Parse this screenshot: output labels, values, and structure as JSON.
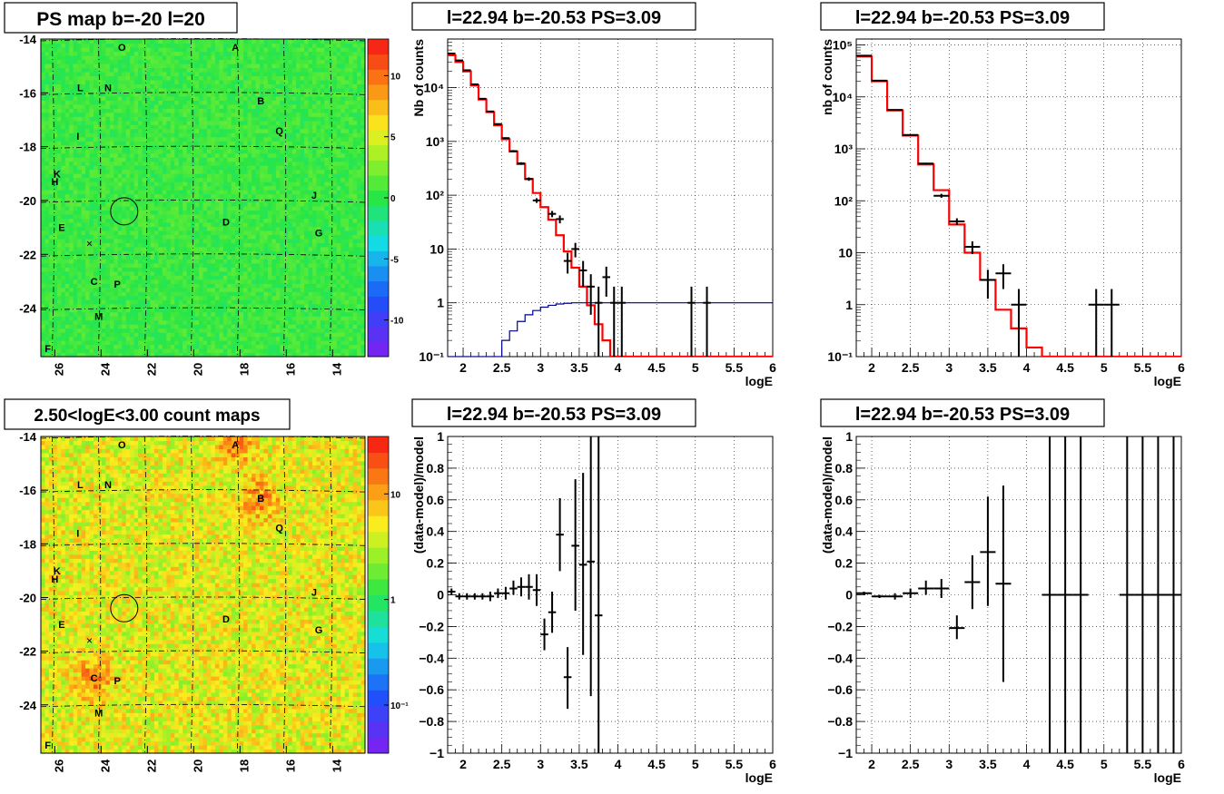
{
  "panel_titles": {
    "map_ps": "PS map b=-20 l=20",
    "map_counts": "2.50<logE<3.00 count maps",
    "spec_a": "l=22.94 b=-20.53 PS=3.09",
    "spec_b": "l=22.94 b=-20.53 PS=3.09",
    "res_a": "l=22.94 b=-20.53 PS=3.09",
    "res_b": "l=22.94 b=-20.53 PS=3.09"
  },
  "colors": {
    "frame": "#000000",
    "model_line": "#ff0000",
    "exposure_line": "#00008b",
    "map_base_ps": "#27e63b",
    "map_base_counts": "#f8b010"
  },
  "map_common": {
    "x_ticks": [
      "26",
      "24",
      "22",
      "20",
      "18",
      "16",
      "14"
    ],
    "y_ticks": [
      "-14",
      "-16",
      "-18",
      "-20",
      "-22",
      "-24"
    ],
    "source_labels": [
      "O",
      "A",
      "N",
      "L",
      "B",
      "Q",
      "I",
      "K",
      "H",
      "J",
      "E",
      "D",
      "G",
      "C",
      "P",
      "M",
      "F"
    ],
    "circle_marker": "candidate position circle",
    "cross_marker": "×"
  },
  "chart_data": [
    {
      "type": "heatmap",
      "panel": "map_ps",
      "title": "PS map b=-20 l=20",
      "x_range": [
        26.6,
        12.6
      ],
      "y_range": [
        -25.8,
        -14
      ],
      "colorbar_ticks": [
        "10",
        "5",
        "0",
        "-5",
        "-10"
      ],
      "colorbar_range": [
        -13,
        13
      ],
      "map_scale": "linear",
      "base_value": 0.5
    },
    {
      "type": "heatmap",
      "panel": "map_counts",
      "title": "2.50<logE<3.00 count maps",
      "x_range": [
        26.6,
        12.6
      ],
      "y_range": [
        -25.8,
        -14
      ],
      "colorbar_ticks": [
        "10",
        "1",
        "10⁻¹"
      ],
      "colorbar_range": [
        0.035,
        35
      ],
      "map_scale": "log",
      "base_value": 4.5
    },
    {
      "type": "line",
      "panel": "spec_a",
      "title": "l=22.94 b=-20.53 PS=3.09",
      "xlabel": "logE",
      "ylabel": "Nb of counts",
      "xlim": [
        1.8,
        6
      ],
      "ylim": [
        0.1,
        80000
      ],
      "y_scale": "log",
      "x_ticks": [
        "2",
        "2.5",
        "3",
        "3.5",
        "4",
        "4.5",
        "5",
        "5.5",
        "6"
      ],
      "y_ticks": [
        "10⁻¹",
        "1",
        "10",
        "10²",
        "10³",
        "10⁴"
      ],
      "grid": true,
      "series": [
        {
          "kind": "step",
          "color": "red",
          "bin_width": 0.1,
          "values": [
            40000,
            30000,
            20000,
            11000,
            6000,
            3500,
            2000,
            1100,
            650,
            380,
            200,
            110,
            60,
            35,
            18,
            9,
            4.5,
            2,
            0.9,
            0.4,
            0.2,
            0.1,
            0.1,
            0.1,
            0.1,
            0.1,
            0.1,
            0.1,
            0.1,
            0.1,
            0.1,
            0.1,
            0.1,
            0.1,
            0.1,
            0.1,
            0.1,
            0.1,
            0.1,
            0.1,
            0.1,
            0.1
          ]
        },
        {
          "kind": "step",
          "color": "blue",
          "bin_width": 0.1,
          "values": [
            0.1,
            0.1,
            0.1,
            0.1,
            0.1,
            0.1,
            0.1,
            0.2,
            0.3,
            0.45,
            0.6,
            0.72,
            0.83,
            0.9,
            0.95,
            0.98,
            1.0,
            1.0,
            1.0,
            1.0,
            1.0,
            1.0,
            1.0,
            1.0,
            1.0,
            1.0,
            1.0,
            1.0,
            1.0,
            1.0,
            1.0,
            1.0,
            1.0,
            1.0,
            1.0,
            1.0,
            1.0,
            1.0,
            1.0,
            1.0,
            1.0,
            1.0
          ]
        },
        {
          "kind": "errorbars",
          "color": "black",
          "xerr": 0.05,
          "points": [
            {
              "x": 1.85,
              "y": 43000,
              "lo": 42000,
              "hi": 44000
            },
            {
              "x": 1.95,
              "y": 32000,
              "lo": 31500,
              "hi": 32500
            },
            {
              "x": 2.05,
              "y": 21000,
              "lo": 20700,
              "hi": 21300
            },
            {
              "x": 2.15,
              "y": 11500,
              "lo": 11300,
              "hi": 11700
            },
            {
              "x": 2.25,
              "y": 6200,
              "lo": 6100,
              "hi": 6300
            },
            {
              "x": 2.35,
              "y": 3600,
              "lo": 3500,
              "hi": 3700
            },
            {
              "x": 2.45,
              "y": 2100,
              "lo": 2050,
              "hi": 2150
            },
            {
              "x": 2.55,
              "y": 1150,
              "lo": 1110,
              "hi": 1190
            },
            {
              "x": 2.65,
              "y": 660,
              "lo": 630,
              "hi": 690
            },
            {
              "x": 2.75,
              "y": 390,
              "lo": 370,
              "hi": 410
            },
            {
              "x": 2.85,
              "y": 200,
              "lo": 185,
              "hi": 215
            },
            {
              "x": 2.95,
              "y": 80,
              "lo": 72,
              "hi": 88
            },
            {
              "x": 3.15,
              "y": 45,
              "lo": 39,
              "hi": 51
            },
            {
              "x": 3.25,
              "y": 36,
              "lo": 30,
              "hi": 42
            },
            {
              "x": 3.35,
              "y": 6,
              "lo": 3.5,
              "hi": 8.5
            },
            {
              "x": 3.45,
              "y": 10,
              "lo": 7,
              "hi": 13
            },
            {
              "x": 3.55,
              "y": 4,
              "lo": 2,
              "hi": 6
            },
            {
              "x": 3.65,
              "y": 2,
              "lo": 0.6,
              "hi": 3.4
            },
            {
              "x": 3.75,
              "y": 1,
              "lo": 0.1,
              "hi": 2
            },
            {
              "x": 3.85,
              "y": 3,
              "lo": 1.3,
              "hi": 4.7
            },
            {
              "x": 3.95,
              "y": 1,
              "lo": 0.1,
              "hi": 2
            },
            {
              "x": 4.05,
              "y": 1,
              "lo": 0.1,
              "hi": 2
            },
            {
              "x": 4.95,
              "y": 1,
              "lo": 0.1,
              "hi": 2
            },
            {
              "x": 5.15,
              "y": 1,
              "lo": 0.1,
              "hi": 2
            }
          ]
        }
      ]
    },
    {
      "type": "line",
      "panel": "spec_b",
      "title": "l=22.94 b=-20.53 PS=3.09",
      "xlabel": "logE",
      "ylabel": "nb of counts",
      "xlim": [
        1.8,
        6
      ],
      "ylim": [
        0.1,
        130000
      ],
      "y_scale": "log",
      "x_ticks": [
        "2",
        "2.5",
        "3",
        "3.5",
        "4",
        "4.5",
        "5",
        "5.5",
        "6"
      ],
      "y_ticks": [
        "10⁻¹",
        "1",
        "10",
        "10²",
        "10³",
        "10⁴",
        "10⁵"
      ],
      "grid": true,
      "series": [
        {
          "kind": "step",
          "color": "red",
          "bin_width": 0.2,
          "values": [
            60000,
            20000,
            5500,
            1800,
            500,
            160,
            35,
            10,
            3,
            0.8,
            0.35,
            0.15,
            0.1,
            0.1,
            0.1,
            0.1,
            0.1,
            0.1,
            0.1,
            0.1,
            0.1
          ]
        },
        {
          "kind": "errorbars",
          "color": "black",
          "xerr": 0.1,
          "points": [
            {
              "x": 1.9,
              "y": 62000,
              "lo": 61000,
              "hi": 63000
            },
            {
              "x": 2.1,
              "y": 20500,
              "lo": 20200,
              "hi": 20800
            },
            {
              "x": 2.3,
              "y": 5600,
              "lo": 5500,
              "hi": 5700
            },
            {
              "x": 2.5,
              "y": 1850,
              "lo": 1800,
              "hi": 1900
            },
            {
              "x": 2.7,
              "y": 520,
              "lo": 500,
              "hi": 540
            },
            {
              "x": 2.9,
              "y": 125,
              "lo": 114,
              "hi": 136
            },
            {
              "x": 3.1,
              "y": 40,
              "lo": 34,
              "hi": 46
            },
            {
              "x": 3.3,
              "y": 13,
              "lo": 9.4,
              "hi": 16.6
            },
            {
              "x": 3.5,
              "y": 3,
              "lo": 1.3,
              "hi": 4.7
            },
            {
              "x": 3.7,
              "y": 4,
              "lo": 2,
              "hi": 6
            },
            {
              "x": 3.9,
              "y": 1,
              "lo": 0.1,
              "hi": 2
            },
            {
              "x": 4.9,
              "y": 1,
              "lo": 0.1,
              "hi": 2
            },
            {
              "x": 5.1,
              "y": 1,
              "lo": 0.1,
              "hi": 2
            }
          ]
        }
      ]
    },
    {
      "type": "scatter",
      "panel": "res_a",
      "title": "l=22.94 b=-20.53 PS=3.09",
      "xlabel": "logE",
      "ylabel": "(data-model)/model",
      "xlim": [
        1.8,
        6
      ],
      "ylim": [
        -1,
        1
      ],
      "x_ticks": [
        "2",
        "2.5",
        "3",
        "3.5",
        "4",
        "4.5",
        "5",
        "5.5",
        "6"
      ],
      "y_ticks": [
        "−1",
        "−0.8",
        "−0.6",
        "−0.4",
        "−0.2",
        "0",
        "0.2",
        "0.4",
        "0.6",
        "0.8",
        "1"
      ],
      "grid": true,
      "series": [
        {
          "kind": "errorbars",
          "color": "black",
          "xerr": 0.05,
          "points": [
            {
              "x": 1.85,
              "y": 0.02,
              "lo": 0.0,
              "hi": 0.04
            },
            {
              "x": 1.95,
              "y": -0.01,
              "lo": -0.03,
              "hi": 0.01
            },
            {
              "x": 2.05,
              "y": -0.01,
              "lo": -0.03,
              "hi": 0.01
            },
            {
              "x": 2.15,
              "y": -0.01,
              "lo": -0.03,
              "hi": 0.01
            },
            {
              "x": 2.25,
              "y": -0.01,
              "lo": -0.03,
              "hi": 0.01
            },
            {
              "x": 2.35,
              "y": -0.01,
              "lo": -0.04,
              "hi": 0.02
            },
            {
              "x": 2.45,
              "y": 0.01,
              "lo": -0.02,
              "hi": 0.04
            },
            {
              "x": 2.55,
              "y": 0.01,
              "lo": -0.03,
              "hi": 0.05
            },
            {
              "x": 2.65,
              "y": 0.04,
              "lo": 0.0,
              "hi": 0.09
            },
            {
              "x": 2.75,
              "y": 0.05,
              "lo": -0.01,
              "hi": 0.11
            },
            {
              "x": 2.85,
              "y": 0.05,
              "lo": -0.03,
              "hi": 0.13
            },
            {
              "x": 2.95,
              "y": 0.03,
              "lo": -0.07,
              "hi": 0.13
            },
            {
              "x": 3.05,
              "y": -0.25,
              "lo": -0.35,
              "hi": -0.15
            },
            {
              "x": 3.15,
              "y": -0.11,
              "lo": -0.24,
              "hi": 0.02
            },
            {
              "x": 3.25,
              "y": 0.38,
              "lo": 0.15,
              "hi": 0.61
            },
            {
              "x": 3.35,
              "y": -0.52,
              "lo": -0.72,
              "hi": -0.33
            },
            {
              "x": 3.45,
              "y": 0.31,
              "lo": -0.1,
              "hi": 0.73
            },
            {
              "x": 3.55,
              "y": 0.19,
              "lo": -0.38,
              "hi": 0.77
            },
            {
              "x": 3.65,
              "y": 0.21,
              "lo": -0.64,
              "hi": 1.0
            },
            {
              "x": 3.75,
              "y": -0.13,
              "lo": -1.0,
              "hi": 1.0
            }
          ]
        }
      ]
    },
    {
      "type": "scatter",
      "panel": "res_b",
      "title": "l=22.94 b=-20.53 PS=3.09",
      "xlabel": "logE",
      "ylabel": "(data-model)/model",
      "xlim": [
        1.8,
        6
      ],
      "ylim": [
        -1,
        1
      ],
      "x_ticks": [
        "2",
        "2.5",
        "3",
        "3.5",
        "4",
        "4.5",
        "5",
        "5.5",
        "6"
      ],
      "y_ticks": [
        "−1",
        "−0.8",
        "−0.6",
        "−0.4",
        "−0.2",
        "0",
        "0.2",
        "0.4",
        "0.6",
        "0.8",
        "1"
      ],
      "grid": true,
      "series": [
        {
          "kind": "errorbars",
          "color": "black",
          "xerr": 0.1,
          "points": [
            {
              "x": 1.9,
              "y": 0.01,
              "lo": 0.0,
              "hi": 0.02
            },
            {
              "x": 2.1,
              "y": -0.01,
              "lo": -0.02,
              "hi": 0.0
            },
            {
              "x": 2.3,
              "y": -0.01,
              "lo": -0.03,
              "hi": 0.01
            },
            {
              "x": 2.5,
              "y": 0.01,
              "lo": -0.02,
              "hi": 0.04
            },
            {
              "x": 2.7,
              "y": 0.04,
              "lo": 0.0,
              "hi": 0.09
            },
            {
              "x": 2.9,
              "y": 0.04,
              "lo": -0.02,
              "hi": 0.1
            },
            {
              "x": 3.1,
              "y": -0.21,
              "lo": -0.28,
              "hi": -0.13
            },
            {
              "x": 3.3,
              "y": 0.08,
              "lo": -0.09,
              "hi": 0.25
            },
            {
              "x": 3.5,
              "y": 0.27,
              "lo": -0.07,
              "hi": 0.62
            },
            {
              "x": 3.7,
              "y": 0.07,
              "lo": -0.55,
              "hi": 0.69
            },
            {
              "x": 4.3,
              "y": 0.0,
              "lo": -1.0,
              "hi": 1.0
            },
            {
              "x": 4.5,
              "y": 0.0,
              "lo": -1.0,
              "hi": 1.0
            },
            {
              "x": 4.7,
              "y": 0.0,
              "lo": -1.0,
              "hi": 1.0
            },
            {
              "x": 5.3,
              "y": 0.0,
              "lo": -1.0,
              "hi": 1.0
            },
            {
              "x": 5.5,
              "y": 0.0,
              "lo": -1.0,
              "hi": 1.0
            },
            {
              "x": 5.7,
              "y": 0.0,
              "lo": -1.0,
              "hi": 1.0
            },
            {
              "x": 5.9,
              "y": 0.0,
              "lo": -1.0,
              "hi": 1.0
            }
          ]
        }
      ]
    }
  ]
}
